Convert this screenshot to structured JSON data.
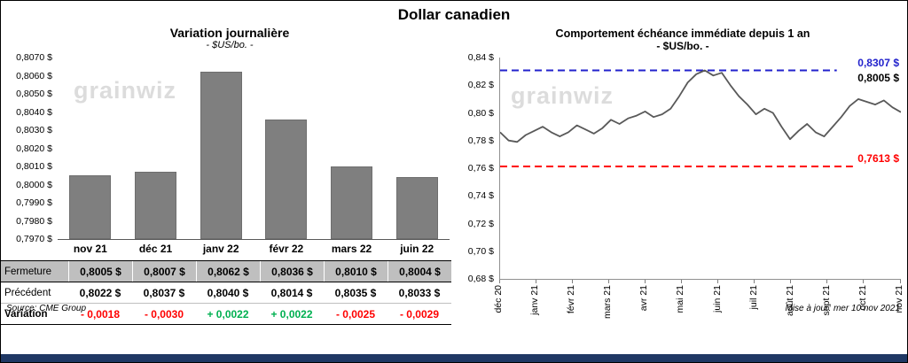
{
  "page": {
    "title": "Dollar canadien",
    "source": "Source: CME Group",
    "updated": "Mise à jour: mer 10 nov 2021"
  },
  "watermark": "grainwiz",
  "colors": {
    "bar": "#7F7F7F",
    "series_line": "#595959",
    "high_line": "#2222CC",
    "low_line": "#FF0000",
    "negative": "#FF0000",
    "positive": "#00B050",
    "table_header_bg": "#BFBFBF",
    "bottom_bar": "#1F3864"
  },
  "chart_data": [
    {
      "type": "bar",
      "title": "Variation  journalière",
      "subtitle": "- $US/bo. -",
      "categories": [
        "nov 21",
        "déc 21",
        "janv 22",
        "févr 22",
        "mars 22",
        "juin 22"
      ],
      "values": [
        0.8005,
        0.8007,
        0.8062,
        0.8036,
        0.801,
        0.8004
      ],
      "ylim": [
        0.797,
        0.807
      ],
      "ytick_labels": [
        "0,8070 $",
        "0,8060 $",
        "0,8050 $",
        "0,8040 $",
        "0,8030 $",
        "0,8020 $",
        "0,8010 $",
        "0,8000 $",
        "0,7990 $",
        "0,7980 $",
        "0,7970 $"
      ],
      "grid": false,
      "legend": "none"
    },
    {
      "type": "line",
      "title": "Comportement échéance immédiate depuis 1 an",
      "subtitle": "- $US/bo. -",
      "x_labels": [
        "déc 20",
        "janv 21",
        "févr 21",
        "mars 21",
        "avr 21",
        "mai 21",
        "juin 21",
        "juil 21",
        "août 21",
        "sept 21",
        "oct 21",
        "nov 21"
      ],
      "ylim": [
        0.68,
        0.84
      ],
      "ytick_labels": [
        "0,84 $",
        "0,82 $",
        "0,80 $",
        "0,78 $",
        "0,76 $",
        "0,74 $",
        "0,72 $",
        "0,70 $",
        "0,68 $"
      ],
      "series": [
        {
          "name": "échéance immédiate",
          "values": [
            0.786,
            0.78,
            0.779,
            0.784,
            0.787,
            0.79,
            0.786,
            0.783,
            0.786,
            0.791,
            0.788,
            0.785,
            0.789,
            0.795,
            0.792,
            0.796,
            0.798,
            0.801,
            0.797,
            0.799,
            0.803,
            0.812,
            0.822,
            0.828,
            0.8307,
            0.827,
            0.829,
            0.82,
            0.812,
            0.806,
            0.799,
            0.803,
            0.8,
            0.79,
            0.781,
            0.787,
            0.792,
            0.786,
            0.783,
            0.79,
            0.797,
            0.805,
            0.81,
            0.808,
            0.806,
            0.809,
            0.804,
            0.8005
          ]
        }
      ],
      "annotations": [
        {
          "label": "0,8307 $",
          "value": 0.8307,
          "color": "#2222CC",
          "style": "dashed",
          "line_extent": 0.84
        },
        {
          "label": "0,8005 $",
          "value": 0.8307,
          "color": "#000000",
          "style": "label-below",
          "line_extent": 0
        },
        {
          "label": "0,7613 $",
          "value": 0.7613,
          "color": "#FF0000",
          "style": "dashed",
          "line_extent": 0.88
        }
      ],
      "grid": false,
      "legend": "none"
    }
  ],
  "table": {
    "rows": [
      {
        "label": "Fermeture",
        "values": [
          "0,8005  $",
          "0,8007  $",
          "0,8062  $",
          "0,8036  $",
          "0,8010  $",
          "0,8004  $"
        ]
      },
      {
        "label": "Précédent",
        "values": [
          "0,8022  $",
          "0,8037  $",
          "0,8040  $",
          "0,8014  $",
          "0,8035  $",
          "0,8033  $"
        ]
      },
      {
        "label": "Variation",
        "values": [
          "- 0,0018",
          "- 0,0030",
          "+ 0,0022",
          "+ 0,0022",
          "- 0,0025",
          "- 0,0029"
        ],
        "value_colors": [
          "#FF0000",
          "#FF0000",
          "#00B050",
          "#00B050",
          "#FF0000",
          "#FF0000"
        ]
      }
    ]
  }
}
